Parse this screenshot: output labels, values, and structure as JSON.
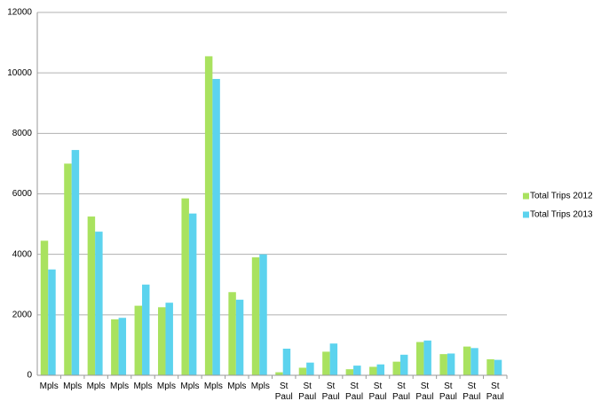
{
  "chart_data": {
    "type": "bar",
    "categories": [
      "Mpls",
      "Mpls",
      "Mpls",
      "Mpls",
      "Mpls",
      "Mpls",
      "Mpls",
      "Mpls",
      "Mpls",
      "Mpls",
      "St Paul",
      "St Paul",
      "St Paul",
      "St Paul",
      "St Paul",
      "St Paul",
      "St Paul",
      "St Paul",
      "St Paul",
      "St Paul"
    ],
    "series": [
      {
        "name": "Total Trips 2012",
        "color": "#a9e25f",
        "values": [
          4450,
          7000,
          5250,
          1850,
          2300,
          2250,
          5850,
          10550,
          2750,
          3900,
          100,
          250,
          780,
          200,
          280,
          450,
          1100,
          700,
          950,
          530
        ]
      },
      {
        "name": "Total Trips 2013",
        "color": "#5cd3ee",
        "values": [
          3500,
          7450,
          4750,
          1900,
          3000,
          2400,
          5350,
          9800,
          2500,
          4000,
          880,
          420,
          1050,
          320,
          360,
          680,
          1150,
          720,
          900,
          510
        ]
      }
    ],
    "ylim": [
      0,
      12000
    ],
    "yticks": [
      0,
      2000,
      4000,
      6000,
      8000,
      10000,
      12000
    ],
    "grid": true,
    "legend": "right"
  }
}
